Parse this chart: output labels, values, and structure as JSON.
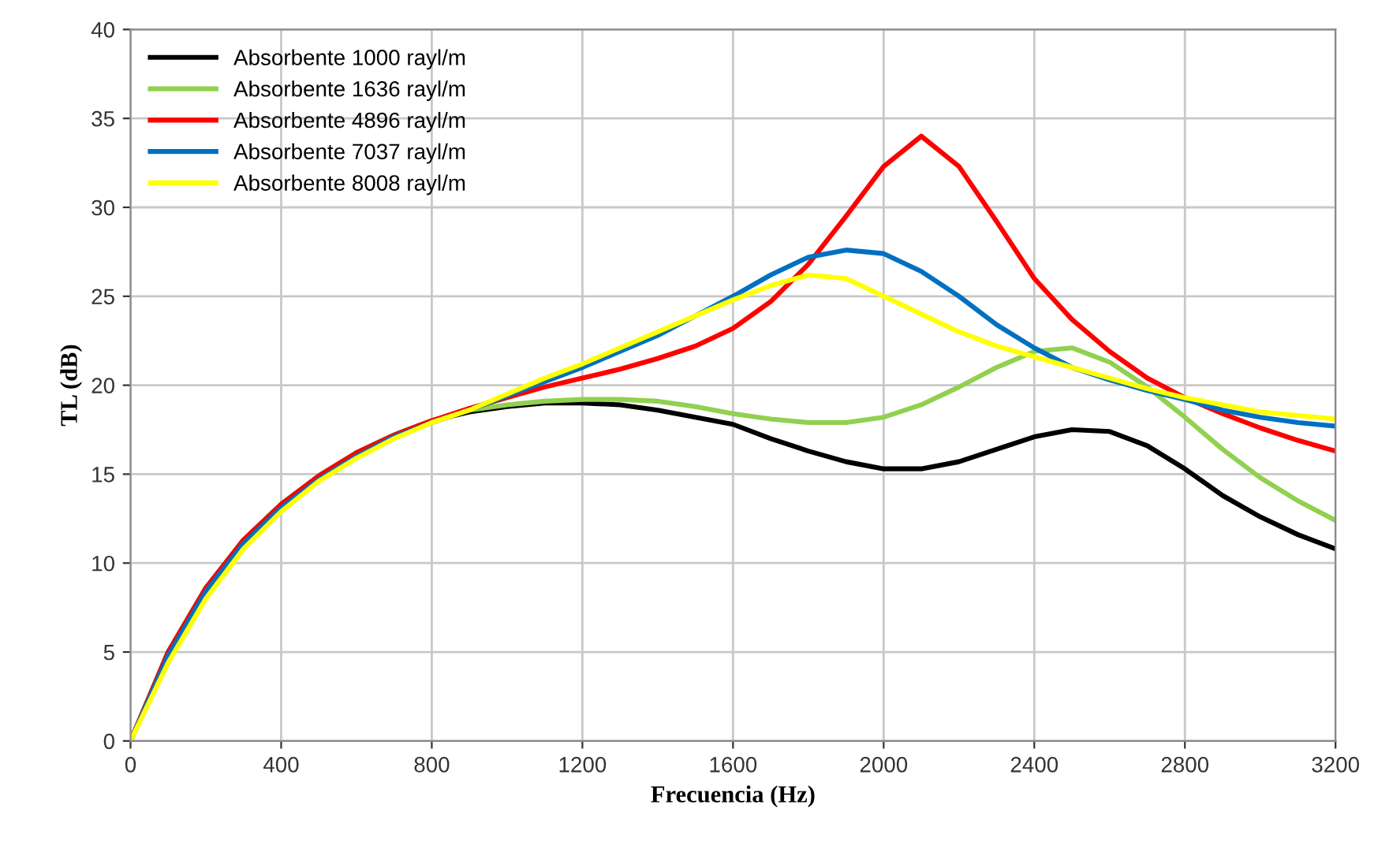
{
  "chart_data": {
    "type": "line",
    "xlabel": "Frecuencia (Hz)",
    "ylabel": "TL (dB)",
    "x": [
      0,
      100,
      200,
      300,
      400,
      500,
      600,
      700,
      800,
      900,
      1000,
      1100,
      1200,
      1300,
      1400,
      1500,
      1600,
      1700,
      1800,
      1900,
      2000,
      2100,
      2200,
      2300,
      2400,
      2500,
      2600,
      2700,
      2800,
      2900,
      3000,
      3100,
      3200
    ],
    "series": [
      {
        "name": "Absorbente 1000 rayl/m",
        "color": "#000000",
        "values": [
          0,
          5,
          8.6,
          11.3,
          13.3,
          14.9,
          16.2,
          17.2,
          18.0,
          18.5,
          18.8,
          19.0,
          19.0,
          18.9,
          18.6,
          18.2,
          17.8,
          17.0,
          16.3,
          15.7,
          15.3,
          15.3,
          15.7,
          16.4,
          17.1,
          17.5,
          17.4,
          16.6,
          15.3,
          13.8,
          12.6,
          11.6,
          10.8
        ]
      },
      {
        "name": "Absorbente 1636 rayl/m",
        "color": "#92d050",
        "values": [
          0,
          5,
          8.6,
          11.3,
          13.3,
          14.9,
          16.2,
          17.2,
          18.0,
          18.6,
          18.9,
          19.1,
          19.2,
          19.2,
          19.1,
          18.8,
          18.4,
          18.1,
          17.9,
          17.9,
          18.2,
          18.9,
          19.9,
          21.0,
          21.9,
          22.1,
          21.3,
          19.9,
          18.2,
          16.4,
          14.8,
          13.5,
          12.4
        ]
      },
      {
        "name": "Absorbente 4896 rayl/m",
        "color": "#ff0000",
        "values": [
          0,
          5,
          8.6,
          11.3,
          13.3,
          14.9,
          16.2,
          17.2,
          18.0,
          18.7,
          19.3,
          19.9,
          20.4,
          20.9,
          21.5,
          22.2,
          23.2,
          24.7,
          26.8,
          29.5,
          32.3,
          34.0,
          32.3,
          29.2,
          26.0,
          23.7,
          21.9,
          20.4,
          19.3,
          18.4,
          17.6,
          16.9,
          16.3
        ]
      },
      {
        "name": "Absorbente 7037 rayl/m",
        "color": "#0070c0",
        "values": [
          0,
          4.8,
          8.4,
          11.1,
          13.1,
          14.7,
          16.0,
          17.1,
          17.9,
          18.6,
          19.4,
          20.2,
          21.0,
          21.9,
          22.8,
          23.9,
          25.0,
          26.2,
          27.2,
          27.6,
          27.4,
          26.4,
          25.0,
          23.4,
          22.1,
          21.0,
          20.3,
          19.7,
          19.2,
          18.6,
          18.2,
          17.9,
          17.7
        ]
      },
      {
        "name": "Absorbente 8008 rayl/m",
        "color": "#ffff00",
        "values": [
          0,
          4.4,
          8.0,
          10.8,
          12.9,
          14.6,
          15.9,
          17.0,
          17.9,
          18.6,
          19.5,
          20.4,
          21.2,
          22.1,
          23.0,
          23.9,
          24.8,
          25.6,
          26.2,
          26.0,
          25.0,
          24.0,
          23.0,
          22.2,
          21.6,
          21.0,
          20.4,
          19.8,
          19.3,
          18.9,
          18.5,
          18.3,
          18.1
        ]
      }
    ],
    "xlim": [
      0,
      3200
    ],
    "xticks": [
      0,
      400,
      800,
      1200,
      1600,
      2000,
      2400,
      2800,
      3200
    ],
    "ylim": [
      0,
      40
    ],
    "yticks": [
      0,
      5,
      10,
      15,
      20,
      25,
      30,
      35,
      40
    ],
    "grid": true,
    "legend": "top left",
    "marker": "none",
    "line_style": "solid"
  }
}
